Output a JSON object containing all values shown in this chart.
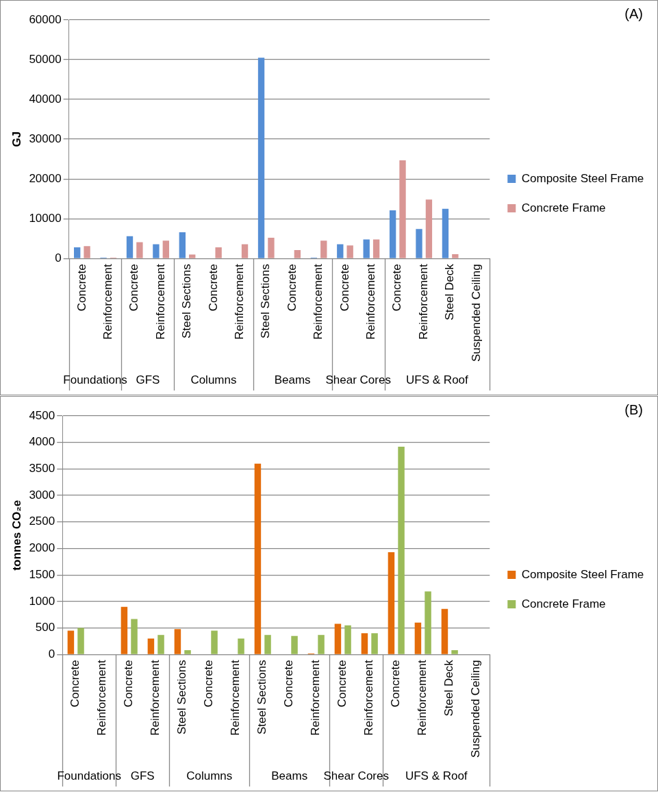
{
  "chart_data": [
    {
      "type": "bar",
      "ylabel": "GJ",
      "annotations": [
        "(A)",
        "Foundations",
        "GFS",
        "Columns",
        "Beams",
        "Shear Cores",
        "UFS & Roof"
      ],
      "categories": [
        "Concrete",
        "Reinforcement",
        "Concrete",
        "Reinforcement",
        "Steel Sections",
        "Concrete",
        "Reinforcement",
        "Steel Sections",
        "Concrete",
        "Reinforcement",
        "Concrete",
        "Reinforcement",
        "Concrete",
        "Reinforcement",
        "Steel Deck",
        "Suspended Ceiling"
      ],
      "series": [
        {
          "name": "Composite Steel Frame",
          "color": "#558ed5",
          "values": [
            2800,
            200,
            5600,
            3600,
            6600,
            0,
            0,
            50500,
            0,
            200,
            3600,
            4800,
            12100,
            7400,
            12500,
            100
          ]
        },
        {
          "name": "Concrete Frame",
          "color": "#d99694",
          "values": [
            3100,
            200,
            4100,
            4500,
            1000,
            2800,
            3600,
            5200,
            2100,
            4500,
            3300,
            4800,
            24700,
            14800,
            1100,
            0
          ]
        }
      ],
      "ylim": [
        0,
        60000
      ],
      "yticks": [
        0,
        10000,
        20000,
        30000,
        40000,
        50000,
        60000
      ],
      "grid": "y",
      "legend": "right"
    },
    {
      "type": "bar",
      "ylabel": "tonnes CO₂e",
      "annotations": [
        "(B)",
        "Foundations",
        "GFS",
        "Columns",
        "Beams",
        "Shear Cores",
        "UFS & Roof"
      ],
      "categories": [
        "Concrete",
        "Reinforcement",
        "Concrete",
        "Reinforcement",
        "Steel Sections",
        "Concrete",
        "Reinforcement",
        "Steel Sections",
        "Concrete",
        "Reinforcement",
        "Concrete",
        "Reinforcement",
        "Concrete",
        "Reinforcement",
        "Steel Deck",
        "Suspended Ceiling"
      ],
      "series": [
        {
          "name": "Composite Steel Frame",
          "color": "#e46c0a",
          "values": [
            450,
            null,
            900,
            300,
            480,
            0,
            0,
            3600,
            null,
            20,
            580,
            400,
            1930,
            600,
            860,
            0
          ]
        },
        {
          "name": "Concrete Frame",
          "color": "#9bbb59",
          "values": [
            500,
            null,
            670,
            370,
            80,
            450,
            300,
            370,
            350,
            370,
            550,
            400,
            3920,
            1190,
            80,
            0
          ]
        }
      ],
      "ylim": [
        0,
        4500
      ],
      "yticks": [
        0,
        500,
        1000,
        1500,
        2000,
        2500,
        3000,
        3500,
        4000,
        4500
      ],
      "grid": "y",
      "legend": "right"
    }
  ]
}
